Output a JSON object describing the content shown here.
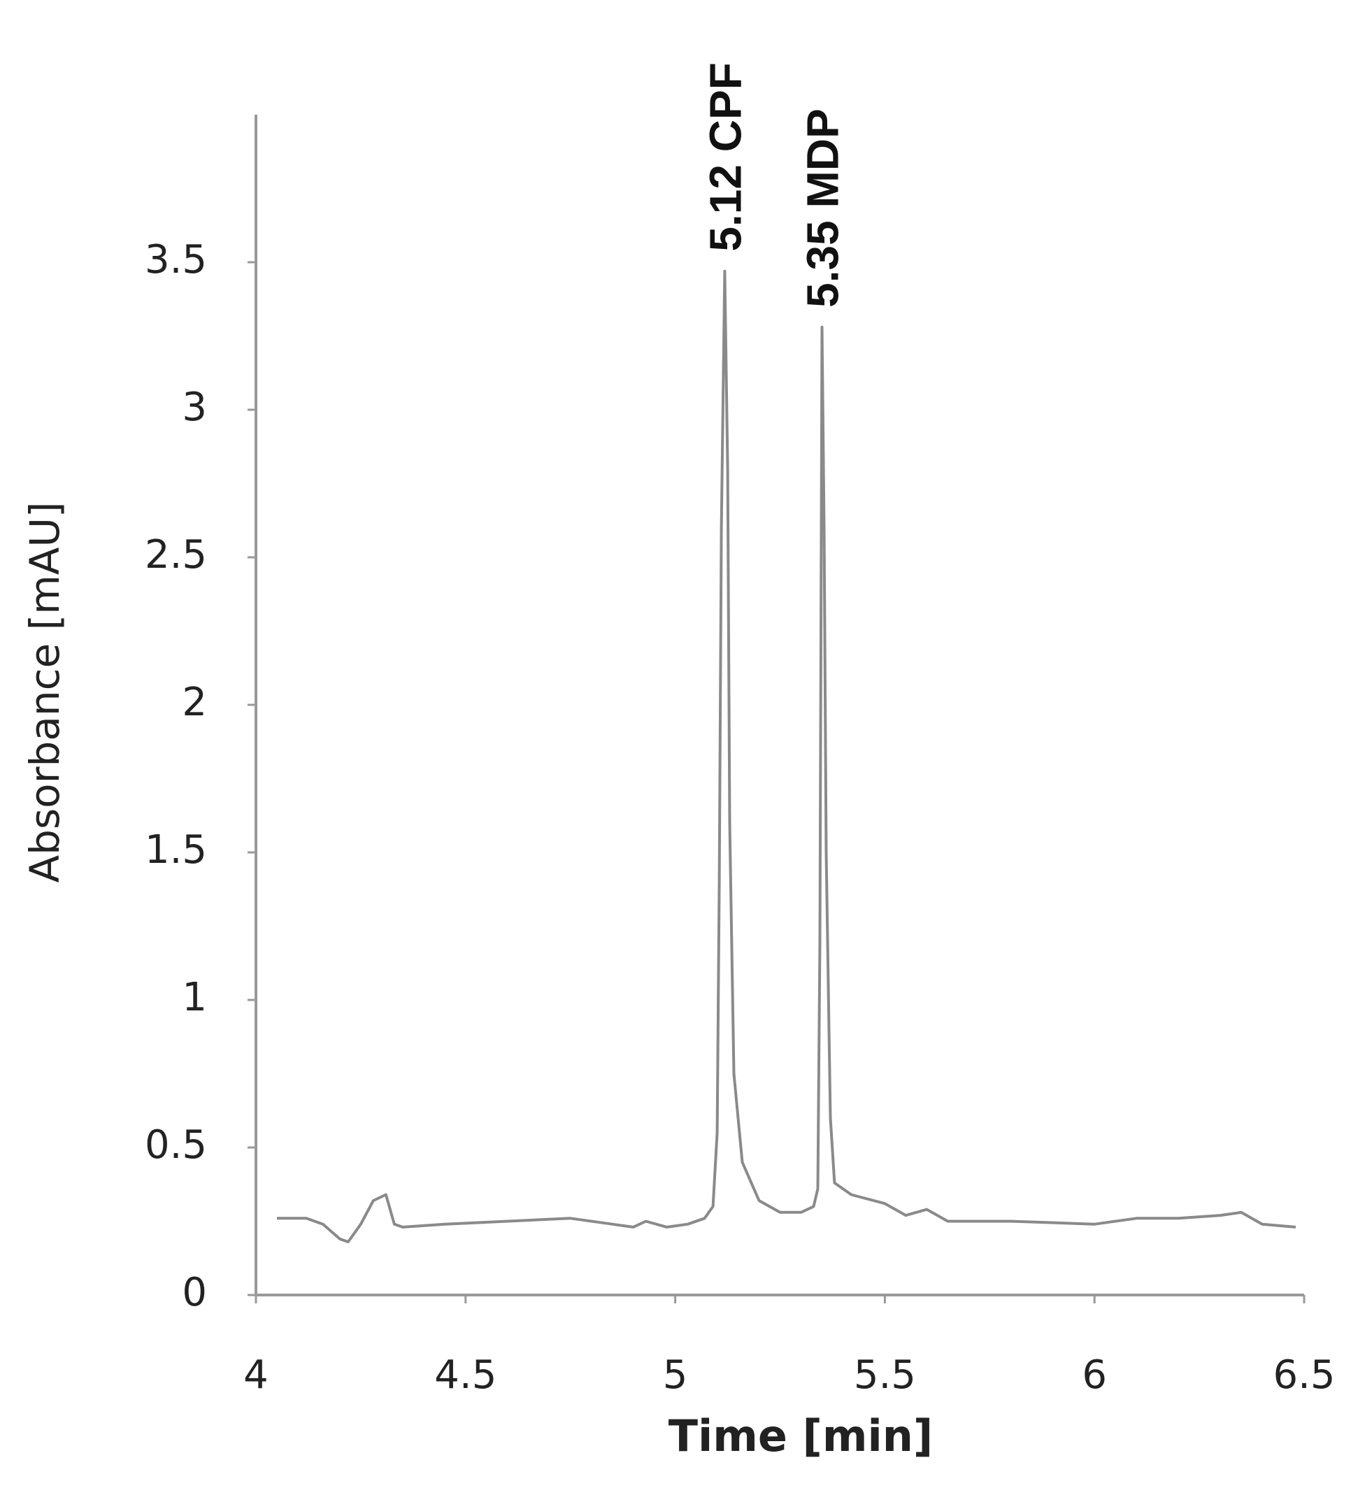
{
  "chart_data": {
    "type": "line",
    "x_label": "Time [min]",
    "y_label": "Absorbance [mAU]",
    "x": [
      4.05,
      4.12,
      4.16,
      4.2,
      4.22,
      4.25,
      4.28,
      4.31,
      4.33,
      4.35,
      4.45,
      4.6,
      4.75,
      4.85,
      4.9,
      4.93,
      4.98,
      5.03,
      5.07,
      5.09,
      5.1,
      5.105,
      5.11,
      5.118,
      5.125,
      5.13,
      5.14,
      5.16,
      5.2,
      5.25,
      5.3,
      5.33,
      5.34,
      5.345,
      5.35,
      5.355,
      5.36,
      5.37,
      5.38,
      5.42,
      5.5,
      5.55,
      5.6,
      5.65,
      5.8,
      6.0,
      6.1,
      6.2,
      6.3,
      6.35,
      6.4,
      6.48
    ],
    "series": [
      {
        "name": "Absorbance",
        "color": "#8a8a8a",
        "values": [
          0.26,
          0.26,
          0.24,
          0.19,
          0.18,
          0.24,
          0.32,
          0.34,
          0.24,
          0.23,
          0.24,
          0.25,
          0.26,
          0.24,
          0.23,
          0.25,
          0.23,
          0.24,
          0.26,
          0.3,
          0.55,
          1.4,
          2.6,
          3.47,
          2.8,
          1.6,
          0.75,
          0.45,
          0.32,
          0.28,
          0.28,
          0.3,
          0.36,
          1.2,
          3.28,
          2.6,
          1.5,
          0.6,
          0.38,
          0.34,
          0.31,
          0.27,
          0.29,
          0.25,
          0.25,
          0.24,
          0.26,
          0.26,
          0.27,
          0.28,
          0.24,
          0.23
        ]
      }
    ],
    "annotations": [
      {
        "text": "5.12 CPF",
        "x": 5.118
      },
      {
        "text": "5.35 MDP",
        "x": 5.35
      }
    ],
    "xlim": [
      4,
      6.5
    ],
    "xticks": [
      4,
      4.5,
      5,
      5.5,
      6,
      6.5
    ],
    "ylim": [
      0,
      4
    ],
    "yticks": [
      0,
      0.5,
      1,
      1.5,
      2,
      2.5,
      3,
      3.5
    ],
    "grid": false
  }
}
